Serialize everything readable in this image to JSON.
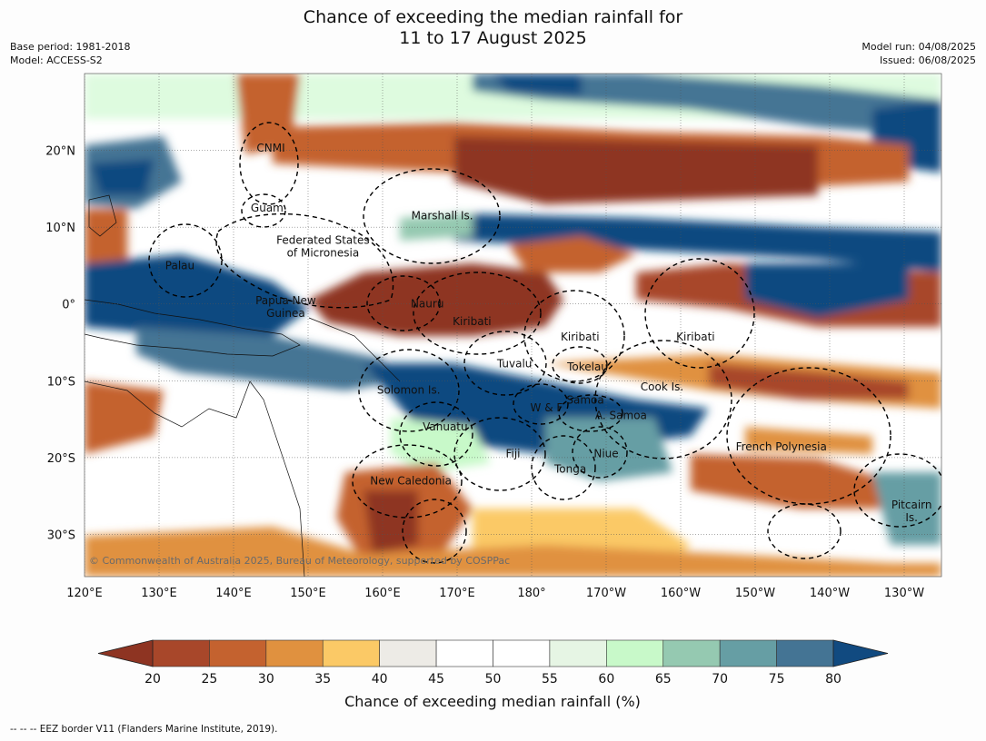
{
  "title": {
    "line1": "Chance of exceeding the median rainfall for",
    "line2": "11 to 17 August 2025"
  },
  "meta": {
    "base_period": "Base period: 1981-2018",
    "model": "Model: ACCESS-S2",
    "model_run": "Model run: 04/08/2025",
    "issued": "Issued: 06/08/2025"
  },
  "map": {
    "lon_range": [
      120,
      235
    ],
    "lat_range": [
      -35.5,
      30
    ],
    "lon_ticks": [
      {
        "lon": 120,
        "label": "120°E"
      },
      {
        "lon": 130,
        "label": "130°E"
      },
      {
        "lon": 140,
        "label": "140°E"
      },
      {
        "lon": 150,
        "label": "150°E"
      },
      {
        "lon": 160,
        "label": "160°E"
      },
      {
        "lon": 170,
        "label": "170°E"
      },
      {
        "lon": 180,
        "label": "180°"
      },
      {
        "lon": 190,
        "label": "170°W"
      },
      {
        "lon": 200,
        "label": "160°W"
      },
      {
        "lon": 210,
        "label": "150°W"
      },
      {
        "lon": 220,
        "label": "140°W"
      },
      {
        "lon": 230,
        "label": "130°W"
      }
    ],
    "lat_ticks": [
      {
        "lat": 20,
        "label": "20°N"
      },
      {
        "lat": 10,
        "label": "10°N"
      },
      {
        "lat": 0,
        "label": "0°"
      },
      {
        "lat": -10,
        "label": "10°S"
      },
      {
        "lat": -20,
        "label": "20°S"
      },
      {
        "lat": -30,
        "label": "30°S"
      }
    ],
    "regions": [
      {
        "lines": [
          "CNMI"
        ],
        "lon": 145.0,
        "lat": 20.3
      },
      {
        "lines": [
          "Guam"
        ],
        "lon": 144.5,
        "lat": 12.5
      },
      {
        "lines": [
          "Marshall Is."
        ],
        "lon": 168.0,
        "lat": 11.5
      },
      {
        "lines": [
          "Federated States",
          "of Micronesia"
        ],
        "lon": 152.0,
        "lat": 7.5
      },
      {
        "lines": [
          "Palau"
        ],
        "lon": 132.8,
        "lat": 5.0
      },
      {
        "lines": [
          "Papua New",
          "Guinea"
        ],
        "lon": 147.0,
        "lat": -0.4
      },
      {
        "lines": [
          "Nauru"
        ],
        "lon": 166.0,
        "lat": 0.0
      },
      {
        "lines": [
          "Kiribati"
        ],
        "lon": 172.0,
        "lat": -2.3
      },
      {
        "lines": [
          "Kiribati"
        ],
        "lon": 186.5,
        "lat": -4.3
      },
      {
        "lines": [
          "Kiribati"
        ],
        "lon": 202.0,
        "lat": -4.3
      },
      {
        "lines": [
          "Tuvalu"
        ],
        "lon": 177.7,
        "lat": -7.8
      },
      {
        "lines": [
          "Tokelau"
        ],
        "lon": 187.5,
        "lat": -8.2
      },
      {
        "lines": [
          "Cook Is."
        ],
        "lon": 197.5,
        "lat": -10.8
      },
      {
        "lines": [
          "Solomon Is."
        ],
        "lon": 163.5,
        "lat": -11.2
      },
      {
        "lines": [
          "Samoa"
        ],
        "lon": 187.2,
        "lat": -12.5
      },
      {
        "lines": [
          "W & F"
        ],
        "lon": 182.0,
        "lat": -13.5
      },
      {
        "lines": [
          "A. Samoa"
        ],
        "lon": 192.0,
        "lat": -14.5
      },
      {
        "lines": [
          "Vanuatu"
        ],
        "lon": 168.4,
        "lat": -16.0
      },
      {
        "lines": [
          "French Polynesia"
        ],
        "lon": 213.5,
        "lat": -18.6
      },
      {
        "lines": [
          "Fiji"
        ],
        "lon": 177.5,
        "lat": -19.5
      },
      {
        "lines": [
          "Niue"
        ],
        "lon": 190.0,
        "lat": -19.5
      },
      {
        "lines": [
          "Tonga"
        ],
        "lon": 185.2,
        "lat": -21.5
      },
      {
        "lines": [
          "New Caledonia"
        ],
        "lon": 163.8,
        "lat": -23.0
      },
      {
        "lines": [
          "Pitcairn",
          "Is."
        ],
        "lon": 231.0,
        "lat": -27.0
      }
    ],
    "copyright": "© Commonwealth of Australia 2025, Bureau of Meteorology, supported by COSPPac"
  },
  "colorbar": {
    "title": "Chance of exceeding median rainfall (%)",
    "under_color": "#8e3422",
    "over_color": "#114a80",
    "bins": [
      {
        "from": 20,
        "to": 25,
        "color": "#a8472a"
      },
      {
        "from": 25,
        "to": 30,
        "color": "#c4622f"
      },
      {
        "from": 30,
        "to": 35,
        "color": "#e0913f"
      },
      {
        "from": 35,
        "to": 40,
        "color": "#fbc966"
      },
      {
        "from": 40,
        "to": 45,
        "color": "#edebe6"
      },
      {
        "from": 45,
        "to": 50,
        "color": "#ffffff"
      },
      {
        "from": 50,
        "to": 55,
        "color": "#ffffff"
      },
      {
        "from": 55,
        "to": 60,
        "color": "#e6f5e4"
      },
      {
        "from": 60,
        "to": 65,
        "color": "#c8f9c9"
      },
      {
        "from": 65,
        "to": 70,
        "color": "#95c9b1"
      },
      {
        "from": 70,
        "to": 75,
        "color": "#669ea4"
      },
      {
        "from": 75,
        "to": 80,
        "color": "#447494"
      }
    ],
    "ticks": [
      20,
      25,
      30,
      35,
      40,
      45,
      50,
      55,
      60,
      65,
      70,
      75,
      80
    ]
  },
  "footnote": "--  --  -- EEZ border V11 (Flanders Marine Institute, 2019)."
}
